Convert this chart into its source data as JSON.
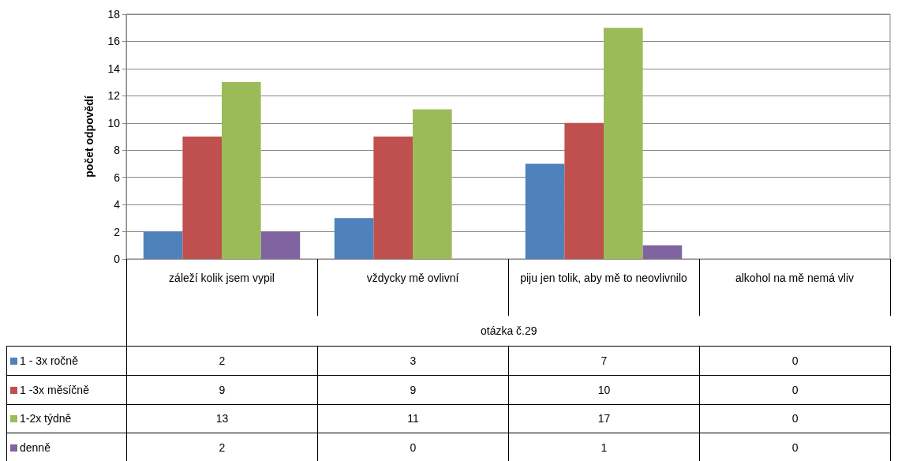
{
  "chart_data": {
    "type": "bar",
    "xlabel": "otázka č.29",
    "ylabel": "počet odpovědí",
    "categories": [
      "záleží kolik jsem vypil",
      "vždycky mě ovlivní",
      "piju jen tolik, aby mě to neovlivnilo",
      "alkohol na mě nemá vliv"
    ],
    "series": [
      {
        "name": "1 - 3x ročně",
        "color": "#4f81bd",
        "values": [
          2,
          3,
          7,
          0
        ]
      },
      {
        "name": "1 -3x měsíčně",
        "color": "#c0504d",
        "values": [
          9,
          9,
          10,
          0
        ]
      },
      {
        "name": "1-2x týdně",
        "color": "#9bbb59",
        "values": [
          13,
          11,
          17,
          0
        ]
      },
      {
        "name": "denně",
        "color": "#8064a2",
        "values": [
          2,
          0,
          1,
          0
        ]
      }
    ],
    "ylim": [
      0,
      18
    ],
    "yticks": [
      0,
      2,
      4,
      6,
      8,
      10,
      12,
      14,
      16,
      18
    ],
    "grid": "y",
    "legend": "bottom",
    "data_labels": true
  }
}
